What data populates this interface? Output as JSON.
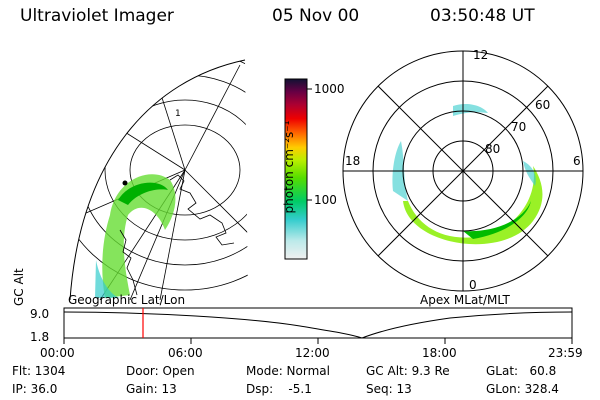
{
  "header": {
    "instrument": "Ultraviolet Imager",
    "date": "05 Nov 00",
    "time": "03:50:48 UT"
  },
  "colorbar": {
    "unit_label": "photon cm⁻²s⁻¹",
    "ticks": [
      "1000",
      "100"
    ]
  },
  "left_map": {
    "caption": "Geographic Lat/Lon",
    "grid_label": "1"
  },
  "polar_plot": {
    "caption": "Apex MLat/MLT",
    "mlt_labels": {
      "top": "12",
      "left": "18",
      "right": "6",
      "bottom": "0"
    },
    "lat_labels": [
      "60",
      "70",
      "80"
    ]
  },
  "altitude_plot": {
    "ylabel": "GC Alt",
    "y_ticks": [
      "9.0",
      "1.8"
    ],
    "x_ticks": [
      "00:00",
      "06:00",
      "12:00",
      "18:00",
      "23:59"
    ]
  },
  "stats": {
    "flt": "Flt: 1304",
    "ip": "IP: 36.0",
    "door": "Door: Open",
    "gain": "Gain: 13",
    "mode": "Mode: Normal",
    "dsp": "Dsp:    -5.1",
    "gc_alt": "GC Alt: 9.3 Re",
    "seq": "Seq: 13",
    "glat": "GLat:   60.8",
    "glon": "GLon: 328.4"
  },
  "colors": {
    "aurora_high": "#00cc00",
    "aurora_mid": "#88ee00",
    "aurora_low": "#33cccc",
    "marker": "#ff0000"
  }
}
